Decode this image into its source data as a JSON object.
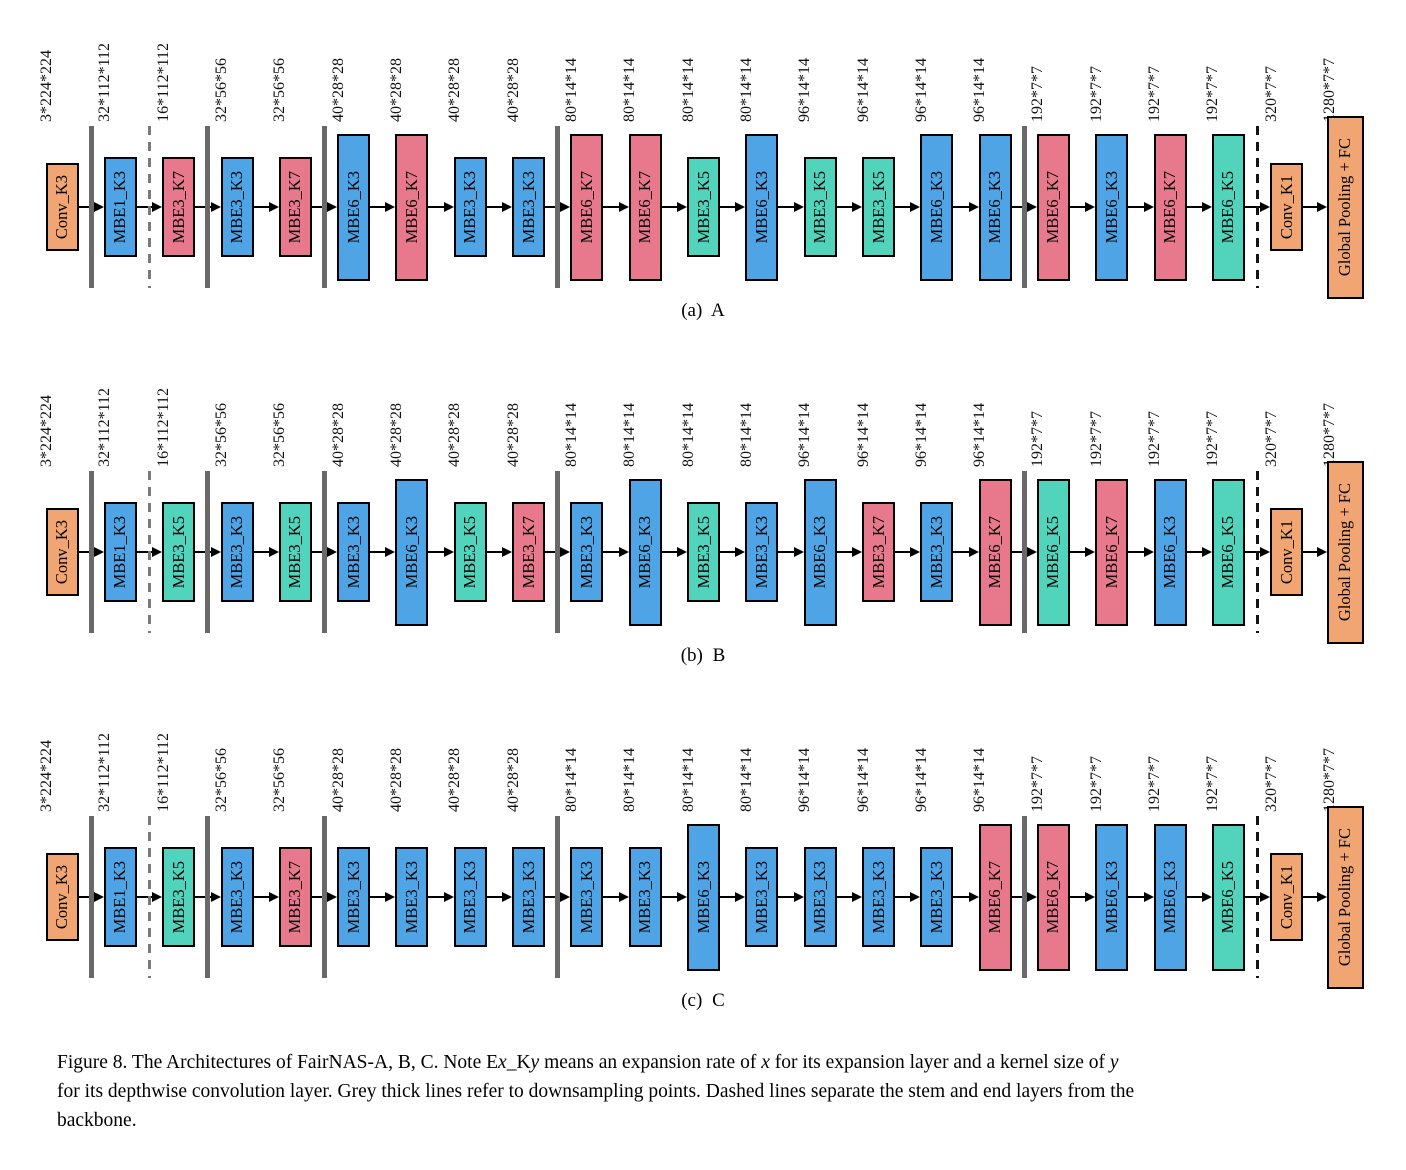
{
  "palette": {
    "k3_blue": "#4FA4E6",
    "k5_teal": "#52D4BC",
    "k7_pink": "#E8798C",
    "conv_orange": "#F1A572",
    "separator_grey": "#696969",
    "dashed_grey": "#7A7A7A",
    "dashed_black": "#141414",
    "arrow_black": "#000000",
    "block_border": "#000000"
  },
  "separators": [
    {
      "after_block": 1,
      "style": "solid"
    },
    {
      "after_block": 2,
      "style": "dashed_grey"
    },
    {
      "after_block": 3,
      "style": "solid"
    },
    {
      "after_block": 5,
      "style": "solid"
    },
    {
      "after_block": 9,
      "style": "solid"
    },
    {
      "after_block": 17,
      "style": "solid"
    },
    {
      "after_block": 21,
      "style": "dashed_black"
    }
  ],
  "rows": [
    {
      "id": "A",
      "caption": "(a) A",
      "blocks": [
        {
          "label": "Conv_K3",
          "dims": "3*224*224"
        },
        {
          "label": "MBE1_K3",
          "dims": "32*112*112"
        },
        {
          "label": "MBE3_K7",
          "dims": "16*112*112"
        },
        {
          "label": "MBE3_K3",
          "dims": "32*56*56"
        },
        {
          "label": "MBE3_K7",
          "dims": "32*56*56"
        },
        {
          "label": "MBE6_K3",
          "dims": "40*28*28"
        },
        {
          "label": "MBE6_K7",
          "dims": "40*28*28"
        },
        {
          "label": "MBE3_K3",
          "dims": "40*28*28"
        },
        {
          "label": "MBE3_K3",
          "dims": "40*28*28"
        },
        {
          "label": "MBE6_K7",
          "dims": "80*14*14"
        },
        {
          "label": "MBE6_K7",
          "dims": "80*14*14"
        },
        {
          "label": "MBE3_K5",
          "dims": "80*14*14"
        },
        {
          "label": "MBE6_K3",
          "dims": "80*14*14"
        },
        {
          "label": "MBE3_K5",
          "dims": "96*14*14"
        },
        {
          "label": "MBE3_K5",
          "dims": "96*14*14"
        },
        {
          "label": "MBE6_K3",
          "dims": "96*14*14"
        },
        {
          "label": "MBE6_K3",
          "dims": "96*14*14"
        },
        {
          "label": "MBE6_K7",
          "dims": "192*7*7"
        },
        {
          "label": "MBE6_K3",
          "dims": "192*7*7"
        },
        {
          "label": "MBE6_K7",
          "dims": "192*7*7"
        },
        {
          "label": "MBE6_K5",
          "dims": "192*7*7"
        },
        {
          "label": "Conv_K1",
          "dims": "320*7*7"
        },
        {
          "label": "Global Pooling + FC",
          "dims": "1280*7*7"
        }
      ]
    },
    {
      "id": "B",
      "caption": "(b) B",
      "blocks": [
        {
          "label": "Conv_K3",
          "dims": "3*224*224"
        },
        {
          "label": "MBE1_K3",
          "dims": "32*112*112"
        },
        {
          "label": "MBE3_K5",
          "dims": "16*112*112"
        },
        {
          "label": "MBE3_K3",
          "dims": "32*56*56"
        },
        {
          "label": "MBE3_K5",
          "dims": "32*56*56"
        },
        {
          "label": "MBE3_K3",
          "dims": "40*28*28"
        },
        {
          "label": "MBE6_K3",
          "dims": "40*28*28"
        },
        {
          "label": "MBE3_K5",
          "dims": "40*28*28"
        },
        {
          "label": "MBE3_K7",
          "dims": "40*28*28"
        },
        {
          "label": "MBE3_K3",
          "dims": "80*14*14"
        },
        {
          "label": "MBE6_K3",
          "dims": "80*14*14"
        },
        {
          "label": "MBE3_K5",
          "dims": "80*14*14"
        },
        {
          "label": "MBE3_K3",
          "dims": "80*14*14"
        },
        {
          "label": "MBE6_K3",
          "dims": "96*14*14"
        },
        {
          "label": "MBE3_K7",
          "dims": "96*14*14"
        },
        {
          "label": "MBE3_K3",
          "dims": "96*14*14"
        },
        {
          "label": "MBE6_K7",
          "dims": "96*14*14"
        },
        {
          "label": "MBE6_K5",
          "dims": "192*7*7"
        },
        {
          "label": "MBE6_K7",
          "dims": "192*7*7"
        },
        {
          "label": "MBE6_K3",
          "dims": "192*7*7"
        },
        {
          "label": "MBE6_K5",
          "dims": "192*7*7"
        },
        {
          "label": "Conv_K1",
          "dims": "320*7*7"
        },
        {
          "label": "Global Pooling + FC",
          "dims": "1280*7*7"
        }
      ]
    },
    {
      "id": "C",
      "caption": "(c) C",
      "blocks": [
        {
          "label": "Conv_K3",
          "dims": "3*224*224"
        },
        {
          "label": "MBE1_K3",
          "dims": "32*112*112"
        },
        {
          "label": "MBE3_K5",
          "dims": "16*112*112"
        },
        {
          "label": "MBE3_K3",
          "dims": "32*56*56"
        },
        {
          "label": "MBE3_K7",
          "dims": "32*56*56"
        },
        {
          "label": "MBE3_K3",
          "dims": "40*28*28"
        },
        {
          "label": "MBE3_K3",
          "dims": "40*28*28"
        },
        {
          "label": "MBE3_K3",
          "dims": "40*28*28"
        },
        {
          "label": "MBE3_K3",
          "dims": "40*28*28"
        },
        {
          "label": "MBE3_K3",
          "dims": "80*14*14"
        },
        {
          "label": "MBE3_K3",
          "dims": "80*14*14"
        },
        {
          "label": "MBE6_K3",
          "dims": "80*14*14"
        },
        {
          "label": "MBE3_K3",
          "dims": "80*14*14"
        },
        {
          "label": "MBE3_K3",
          "dims": "96*14*14"
        },
        {
          "label": "MBE3_K3",
          "dims": "96*14*14"
        },
        {
          "label": "MBE3_K3",
          "dims": "96*14*14"
        },
        {
          "label": "MBE6_K7",
          "dims": "96*14*14"
        },
        {
          "label": "MBE6_K7",
          "dims": "192*7*7"
        },
        {
          "label": "MBE6_K3",
          "dims": "192*7*7"
        },
        {
          "label": "MBE6_K3",
          "dims": "192*7*7"
        },
        {
          "label": "MBE6_K5",
          "dims": "192*7*7"
        },
        {
          "label": "Conv_K1",
          "dims": "320*7*7"
        },
        {
          "label": "Global Pooling + FC",
          "dims": "1280*7*7"
        }
      ]
    }
  ],
  "caption": {
    "lines": [
      [
        {
          "t": "Figure 8. The Architectures of FairNAS-A, B, C. Note E"
        },
        {
          "t": "x",
          "em": true
        },
        {
          "t": "_K"
        },
        {
          "t": "y",
          "em": true
        },
        {
          "t": " means an expansion rate of "
        },
        {
          "t": "x",
          "em": true
        },
        {
          "t": " for its expansion layer and a kernel size of "
        },
        {
          "t": "y",
          "em": true
        }
      ],
      [
        {
          "t": "for its depthwise convolution layer. Grey thick lines refer to downsampling points. Dashed lines separate the stem and end layers from the"
        }
      ],
      [
        {
          "t": "backbone."
        }
      ]
    ]
  }
}
